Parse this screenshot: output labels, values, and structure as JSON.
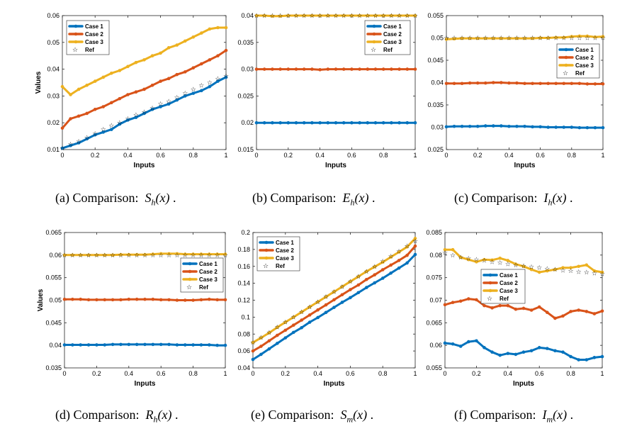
{
  "colors": {
    "case1": "#0072BD",
    "case2": "#D95319",
    "case3": "#EDB120",
    "ref": "#000000"
  },
  "chart_data": [
    {
      "type": "line",
      "id": "a",
      "title": "",
      "xlabel": "Inputs",
      "ylabel": "Values",
      "xlim": [
        0,
        1
      ],
      "ylim": [
        0.01,
        0.06
      ],
      "xticks": [
        0,
        0.2,
        0.4,
        0.6,
        0.8,
        1
      ],
      "xtick_labels": [
        "0",
        "0.2",
        "0.4",
        "0.6",
        "0.8",
        "1"
      ],
      "yticks": [
        0.01,
        0.02,
        0.03,
        0.04,
        0.05,
        0.06
      ],
      "ytick_labels": [
        "0.01",
        "0.02",
        "0.03",
        "0.04",
        "0.05",
        "0.06"
      ],
      "legend_position": "top-left",
      "caption": {
        "prefix": "(a) Comparison:",
        "symbol": "S",
        "subscript": "h",
        "arg": "(x)",
        "suffix": "."
      },
      "x": [
        0,
        0.05,
        0.1,
        0.15,
        0.2,
        0.25,
        0.3,
        0.35,
        0.4,
        0.45,
        0.5,
        0.55,
        0.6,
        0.65,
        0.7,
        0.75,
        0.8,
        0.85,
        0.9,
        0.95,
        1
      ],
      "series": [
        {
          "name": "Case 1",
          "values": [
            0.0105,
            0.0115,
            0.0125,
            0.014,
            0.0155,
            0.0165,
            0.0175,
            0.0195,
            0.021,
            0.022,
            0.0235,
            0.025,
            0.026,
            0.027,
            0.0285,
            0.03,
            0.031,
            0.032,
            0.0335,
            0.0355,
            0.037
          ]
        },
        {
          "name": "Case 2",
          "values": [
            0.018,
            0.0215,
            0.0225,
            0.0235,
            0.025,
            0.026,
            0.0275,
            0.029,
            0.0305,
            0.0315,
            0.0325,
            0.034,
            0.0355,
            0.0365,
            0.038,
            0.039,
            0.0405,
            0.042,
            0.0435,
            0.045,
            0.047
          ]
        },
        {
          "name": "Case 3",
          "values": [
            0.0335,
            0.0305,
            0.0325,
            0.034,
            0.0355,
            0.037,
            0.0385,
            0.0395,
            0.041,
            0.0425,
            0.0435,
            0.045,
            0.046,
            0.048,
            0.049,
            0.0505,
            0.052,
            0.0535,
            0.055,
            0.0555,
            0.0555
          ]
        },
        {
          "name": "Ref",
          "marker_only": true,
          "values": [
            0.0105,
            0.012,
            0.013,
            0.0145,
            0.016,
            0.0175,
            0.019,
            0.02,
            0.0215,
            0.023,
            0.024,
            0.0255,
            0.027,
            0.028,
            0.0295,
            0.031,
            0.0325,
            0.034,
            0.035,
            0.0365,
            0.0375
          ]
        }
      ]
    },
    {
      "type": "line",
      "id": "b",
      "title": "",
      "xlabel": "Inputs",
      "ylabel": "",
      "xlim": [
        0,
        1
      ],
      "ylim": [
        0.015,
        0.04
      ],
      "xticks": [
        0,
        0.2,
        0.4,
        0.6,
        0.8,
        1
      ],
      "xtick_labels": [
        "0",
        "0.2",
        "0.4",
        "0.6",
        "0.8",
        "1"
      ],
      "yticks": [
        0.015,
        0.02,
        0.025,
        0.03,
        0.035,
        0.04
      ],
      "ytick_labels": [
        "0.015",
        "0.02",
        "0.025",
        "0.03",
        "0.035",
        "0.04"
      ],
      "legend_position": "top-right",
      "caption": {
        "prefix": "(b) Comparison:",
        "symbol": "E",
        "subscript": "h",
        "arg": "(x)",
        "suffix": "."
      },
      "x": [
        0,
        0.05,
        0.1,
        0.15,
        0.2,
        0.25,
        0.3,
        0.35,
        0.4,
        0.45,
        0.5,
        0.55,
        0.6,
        0.65,
        0.7,
        0.75,
        0.8,
        0.85,
        0.9,
        0.95,
        1
      ],
      "series": [
        {
          "name": "Case 1",
          "values": [
            0.02,
            0.02,
            0.02,
            0.02,
            0.02,
            0.02,
            0.02,
            0.02,
            0.02,
            0.02,
            0.02,
            0.02,
            0.02,
            0.02,
            0.02,
            0.02,
            0.02,
            0.02,
            0.02,
            0.02,
            0.02
          ]
        },
        {
          "name": "Case 2",
          "values": [
            0.03,
            0.03,
            0.03,
            0.03,
            0.03,
            0.03,
            0.03,
            0.03,
            0.0299,
            0.03,
            0.03,
            0.03,
            0.03,
            0.03,
            0.03,
            0.03,
            0.03,
            0.03,
            0.03,
            0.03,
            0.03
          ]
        },
        {
          "name": "Case 3",
          "values": [
            0.04,
            0.04,
            0.0399,
            0.0399,
            0.04,
            0.04,
            0.04,
            0.04,
            0.04,
            0.04,
            0.04,
            0.04,
            0.04,
            0.04,
            0.04,
            0.04,
            0.04,
            0.04,
            0.04,
            0.04,
            0.04
          ]
        },
        {
          "name": "Ref",
          "marker_only": true,
          "values": [
            0.04,
            0.04,
            0.04,
            0.04,
            0.04,
            0.04,
            0.04,
            0.04,
            0.04,
            0.04,
            0.04,
            0.04,
            0.04,
            0.04,
            0.04,
            0.04,
            0.04,
            0.04,
            0.04,
            0.04,
            0.04
          ]
        }
      ]
    },
    {
      "type": "line",
      "id": "c",
      "title": "",
      "xlabel": "Inputs",
      "ylabel": "",
      "xlim": [
        0,
        1
      ],
      "ylim": [
        0.025,
        0.055
      ],
      "xticks": [
        0,
        0.2,
        0.4,
        0.6,
        0.8,
        1
      ],
      "xtick_labels": [
        "0",
        "0.2",
        "0.4",
        "0.6",
        "0.8",
        "1"
      ],
      "yticks": [
        0.025,
        0.03,
        0.035,
        0.04,
        0.045,
        0.05,
        0.055
      ],
      "ytick_labels": [
        "0.025",
        "0.03",
        "0.035",
        "0.04",
        "0.045",
        "0.05",
        "0.055"
      ],
      "legend_position": "right",
      "caption": {
        "prefix": "(c) Comparison:",
        "symbol": "I",
        "subscript": "h",
        "arg": "(x)",
        "suffix": "."
      },
      "x": [
        0,
        0.05,
        0.1,
        0.15,
        0.2,
        0.25,
        0.3,
        0.35,
        0.4,
        0.45,
        0.5,
        0.55,
        0.6,
        0.65,
        0.7,
        0.75,
        0.8,
        0.85,
        0.9,
        0.95,
        1
      ],
      "series": [
        {
          "name": "Case 1",
          "values": [
            0.0301,
            0.0302,
            0.0302,
            0.0302,
            0.0302,
            0.0303,
            0.0303,
            0.0303,
            0.0302,
            0.0302,
            0.0302,
            0.0301,
            0.0301,
            0.03,
            0.03,
            0.03,
            0.03,
            0.0299,
            0.0299,
            0.0299,
            0.0299
          ]
        },
        {
          "name": "Case 2",
          "values": [
            0.0398,
            0.0398,
            0.0398,
            0.0399,
            0.0399,
            0.0399,
            0.04,
            0.04,
            0.0399,
            0.0399,
            0.0398,
            0.0398,
            0.0398,
            0.0398,
            0.0398,
            0.0398,
            0.0398,
            0.0398,
            0.0397,
            0.0397,
            0.0397
          ]
        },
        {
          "name": "Case 3",
          "values": [
            0.0497,
            0.0498,
            0.0499,
            0.0499,
            0.0499,
            0.0499,
            0.0499,
            0.0499,
            0.0499,
            0.0499,
            0.0499,
            0.0499,
            0.05,
            0.05,
            0.0501,
            0.0501,
            0.0503,
            0.0504,
            0.0504,
            0.0502,
            0.0503
          ]
        },
        {
          "name": "Ref",
          "marker_only": true,
          "values": [
            0.05,
            0.05,
            0.05,
            0.05,
            0.05,
            0.05,
            0.05,
            0.05,
            0.05,
            0.05,
            0.05,
            0.05,
            0.05,
            0.05,
            0.05,
            0.05,
            0.05,
            0.05,
            0.05,
            0.05,
            0.05
          ]
        }
      ]
    },
    {
      "type": "line",
      "id": "d",
      "title": "",
      "xlabel": "Inputs",
      "ylabel": "Values",
      "xlim": [
        0,
        1
      ],
      "ylim": [
        0.035,
        0.065
      ],
      "xticks": [
        0,
        0.2,
        0.4,
        0.6,
        0.8,
        1
      ],
      "xtick_labels": [
        "0",
        "0.2",
        "0.4",
        "0.6",
        "0.8",
        "1"
      ],
      "yticks": [
        0.035,
        0.04,
        0.045,
        0.05,
        0.055,
        0.06,
        0.065
      ],
      "ytick_labels": [
        "0.035",
        "0.04",
        "0.045",
        "0.05",
        "0.055",
        "0.06",
        "0.065"
      ],
      "legend_position": "right",
      "caption": {
        "prefix": "(d) Comparison:",
        "symbol": "R",
        "subscript": "h",
        "arg": "(x)",
        "suffix": "."
      },
      "x": [
        0,
        0.05,
        0.1,
        0.15,
        0.2,
        0.25,
        0.3,
        0.35,
        0.4,
        0.45,
        0.5,
        0.55,
        0.6,
        0.65,
        0.7,
        0.75,
        0.8,
        0.85,
        0.9,
        0.95,
        1
      ],
      "series": [
        {
          "name": "Case 1",
          "values": [
            0.0401,
            0.0401,
            0.0401,
            0.0401,
            0.0401,
            0.0401,
            0.0402,
            0.0402,
            0.0402,
            0.0402,
            0.0402,
            0.0402,
            0.0402,
            0.0402,
            0.0401,
            0.0401,
            0.0401,
            0.0401,
            0.0401,
            0.04,
            0.04
          ]
        },
        {
          "name": "Case 2",
          "values": [
            0.0502,
            0.0502,
            0.0502,
            0.0501,
            0.0501,
            0.0501,
            0.0501,
            0.0501,
            0.0502,
            0.0502,
            0.0502,
            0.0502,
            0.0501,
            0.0501,
            0.05,
            0.05,
            0.05,
            0.0501,
            0.0502,
            0.0501,
            0.0501
          ]
        },
        {
          "name": "Case 3",
          "values": [
            0.06,
            0.06,
            0.06,
            0.06,
            0.06,
            0.06,
            0.06,
            0.0601,
            0.0601,
            0.0601,
            0.0601,
            0.0602,
            0.0603,
            0.0603,
            0.0603,
            0.0602,
            0.0602,
            0.0602,
            0.0602,
            0.0602,
            0.0602
          ]
        },
        {
          "name": "Ref",
          "marker_only": true,
          "values": [
            0.06,
            0.06,
            0.06,
            0.06,
            0.06,
            0.06,
            0.06,
            0.06,
            0.06,
            0.06,
            0.06,
            0.06,
            0.06,
            0.06,
            0.06,
            0.06,
            0.06,
            0.06,
            0.06,
            0.06,
            0.06
          ]
        }
      ]
    },
    {
      "type": "line",
      "id": "e",
      "title": "",
      "xlabel": "Inputs",
      "ylabel": "",
      "xlim": [
        0,
        1
      ],
      "ylim": [
        0.04,
        0.2
      ],
      "xticks": [
        0,
        0.2,
        0.4,
        0.6,
        0.8,
        1
      ],
      "xtick_labels": [
        "0",
        "0.2",
        "0.4",
        "0.6",
        "0.8",
        "1"
      ],
      "yticks": [
        0.04,
        0.06,
        0.08,
        0.1,
        0.12,
        0.14,
        0.16,
        0.18,
        0.2
      ],
      "ytick_labels": [
        "0.04",
        "0.06",
        "0.08",
        "0.1",
        "0.12",
        "0.14",
        "0.16",
        "0.18",
        "0.2"
      ],
      "legend_position": "top-left",
      "caption": {
        "prefix": "(e) Comparison:",
        "symbol": "S",
        "subscript": "m",
        "arg": "(x)",
        "suffix": "."
      },
      "x": [
        0,
        0.05,
        0.1,
        0.15,
        0.2,
        0.25,
        0.3,
        0.35,
        0.4,
        0.45,
        0.5,
        0.55,
        0.6,
        0.65,
        0.7,
        0.75,
        0.8,
        0.85,
        0.9,
        0.95,
        1
      ],
      "series": [
        {
          "name": "Case 1",
          "values": [
            0.05,
            0.056,
            0.0625,
            0.069,
            0.0755,
            0.082,
            0.0875,
            0.094,
            0.0995,
            0.1055,
            0.1115,
            0.1175,
            0.123,
            0.129,
            0.135,
            0.1405,
            0.146,
            0.152,
            0.158,
            0.164,
            0.174
          ]
        },
        {
          "name": "Case 2",
          "values": [
            0.06,
            0.0655,
            0.072,
            0.0785,
            0.0845,
            0.0905,
            0.0965,
            0.1025,
            0.1085,
            0.1145,
            0.1205,
            0.1265,
            0.1325,
            0.138,
            0.1445,
            0.15,
            0.156,
            0.1615,
            0.167,
            0.173,
            0.184
          ]
        },
        {
          "name": "Case 3",
          "values": [
            0.07,
            0.0755,
            0.0815,
            0.088,
            0.094,
            0.1,
            0.106,
            0.112,
            0.118,
            0.124,
            0.13,
            0.136,
            0.142,
            0.148,
            0.154,
            0.1595,
            0.165,
            0.171,
            0.177,
            0.183,
            0.193
          ]
        },
        {
          "name": "Ref",
          "marker_only": true,
          "values": [
            0.07,
            0.076,
            0.082,
            0.088,
            0.094,
            0.1,
            0.106,
            0.112,
            0.118,
            0.124,
            0.13,
            0.136,
            0.142,
            0.148,
            0.154,
            0.16,
            0.166,
            0.172,
            0.178,
            0.184,
            0.19
          ]
        }
      ]
    },
    {
      "type": "line",
      "id": "f",
      "title": "",
      "xlabel": "Inputs",
      "ylabel": "",
      "xlim": [
        0,
        1
      ],
      "ylim": [
        0.055,
        0.085
      ],
      "xticks": [
        0,
        0.2,
        0.4,
        0.6,
        0.8,
        1
      ],
      "xtick_labels": [
        "0",
        "0.2",
        "0.4",
        "0.6",
        "0.8",
        "1"
      ],
      "yticks": [
        0.055,
        0.06,
        0.065,
        0.07,
        0.075,
        0.08,
        0.085
      ],
      "ytick_labels": [
        "0.055",
        "0.06",
        "0.065",
        "0.07",
        "0.075",
        "0.08",
        "0.085"
      ],
      "legend_position": "center-left",
      "caption": {
        "prefix": "(f) Comparison:",
        "symbol": "I",
        "subscript": "m",
        "arg": "(x)",
        "suffix": "."
      },
      "x": [
        0,
        0.05,
        0.1,
        0.15,
        0.2,
        0.25,
        0.3,
        0.35,
        0.4,
        0.45,
        0.5,
        0.55,
        0.6,
        0.65,
        0.7,
        0.75,
        0.8,
        0.85,
        0.9,
        0.95,
        1
      ],
      "series": [
        {
          "name": "Case 1",
          "values": [
            0.0605,
            0.0603,
            0.0598,
            0.0608,
            0.061,
            0.0595,
            0.0585,
            0.0578,
            0.0582,
            0.058,
            0.0585,
            0.0588,
            0.0595,
            0.0593,
            0.0588,
            0.0585,
            0.0575,
            0.0568,
            0.0568,
            0.0573,
            0.0575
          ]
        },
        {
          "name": "Case 2",
          "values": [
            0.069,
            0.0695,
            0.0698,
            0.0703,
            0.0701,
            0.0688,
            0.0683,
            0.0688,
            0.0688,
            0.068,
            0.0682,
            0.0678,
            0.0685,
            0.0673,
            0.066,
            0.0665,
            0.0675,
            0.0678,
            0.0675,
            0.067,
            0.0676
          ]
        },
        {
          "name": "Case 3",
          "values": [
            0.0812,
            0.0812,
            0.0795,
            0.079,
            0.0785,
            0.079,
            0.0789,
            0.0793,
            0.0788,
            0.078,
            0.0775,
            0.0768,
            0.0762,
            0.0765,
            0.0768,
            0.0772,
            0.0772,
            0.0775,
            0.0778,
            0.0765,
            0.0762
          ]
        },
        {
          "name": "Ref",
          "marker_only": true,
          "values": [
            0.0805,
            0.08,
            0.0795,
            0.0793,
            0.079,
            0.0788,
            0.0785,
            0.0783,
            0.078,
            0.0778,
            0.0776,
            0.0774,
            0.0772,
            0.077,
            0.0768,
            0.0766,
            0.0765,
            0.0763,
            0.0762,
            0.076,
            0.0758
          ]
        }
      ]
    }
  ]
}
